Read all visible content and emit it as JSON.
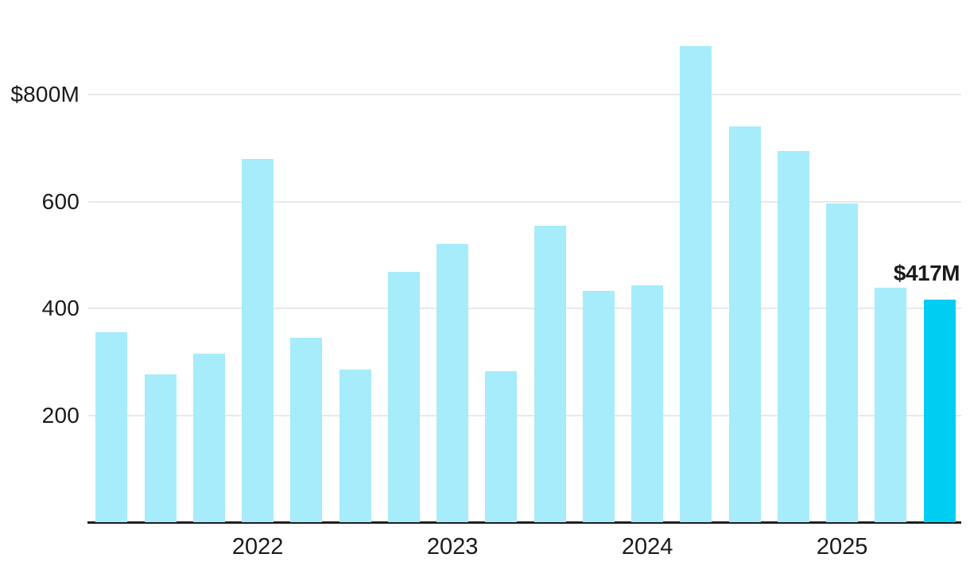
{
  "chart_data": {
    "type": "bar",
    "title": "",
    "xlabel": "",
    "ylabel": "",
    "unit": "USD millions",
    "n_bars": 18,
    "frequency": "quarterly",
    "values": [
      355,
      277,
      315,
      680,
      345,
      286,
      468,
      521,
      282,
      554,
      433,
      443,
      891,
      740,
      694,
      596,
      439,
      417
    ],
    "highlight_index": 17,
    "highlight_label": "$417M",
    "y_ticks": [
      {
        "value": 800,
        "label": "$800M"
      },
      {
        "value": 600,
        "label": "600"
      },
      {
        "value": 400,
        "label": "400"
      },
      {
        "value": 200,
        "label": "200"
      }
    ],
    "x_ticks": [
      {
        "label": "2022",
        "bar_index": 3
      },
      {
        "label": "2023",
        "bar_index": 7
      },
      {
        "label": "2024",
        "bar_index": 11
      },
      {
        "label": "2025",
        "bar_index": 15
      }
    ],
    "ylim": [
      0,
      920
    ],
    "grid": true,
    "legend": "none",
    "colors": {
      "bar": "#A6ECFB",
      "highlight": "#00CDF2",
      "gridline": "#E8E8E8",
      "axis": "#1F1F1F",
      "text": "#1A1A1A"
    }
  }
}
